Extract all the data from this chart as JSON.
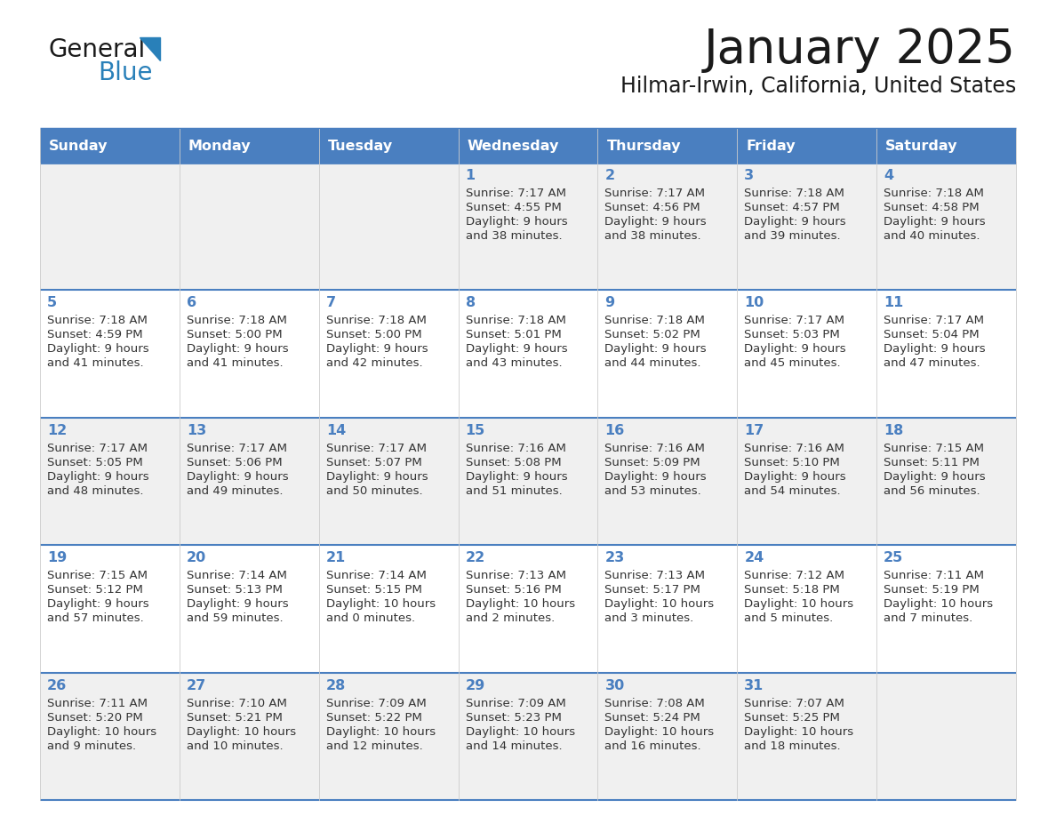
{
  "title": "January 2025",
  "subtitle": "Hilmar-Irwin, California, United States",
  "header_bg": "#4a7fc0",
  "header_text_color": "#ffffff",
  "row_bg_odd": "#f0f0f0",
  "row_bg_even": "#ffffff",
  "day_number_color": "#4a7fc0",
  "cell_text_color": "#333333",
  "border_color": "#4a7fc0",
  "logo_general_color": "#1a1a1a",
  "logo_blue_color": "#2980b9",
  "logo_triangle_color": "#2980b9",
  "days_of_week": [
    "Sunday",
    "Monday",
    "Tuesday",
    "Wednesday",
    "Thursday",
    "Friday",
    "Saturday"
  ],
  "weeks": [
    [
      {
        "day": "",
        "sunrise": "",
        "sunset": "",
        "daylight": ""
      },
      {
        "day": "",
        "sunrise": "",
        "sunset": "",
        "daylight": ""
      },
      {
        "day": "",
        "sunrise": "",
        "sunset": "",
        "daylight": ""
      },
      {
        "day": "1",
        "sunrise": "7:17 AM",
        "sunset": "4:55 PM",
        "daylight": "9 hours\nand 38 minutes."
      },
      {
        "day": "2",
        "sunrise": "7:17 AM",
        "sunset": "4:56 PM",
        "daylight": "9 hours\nand 38 minutes."
      },
      {
        "day": "3",
        "sunrise": "7:18 AM",
        "sunset": "4:57 PM",
        "daylight": "9 hours\nand 39 minutes."
      },
      {
        "day": "4",
        "sunrise": "7:18 AM",
        "sunset": "4:58 PM",
        "daylight": "9 hours\nand 40 minutes."
      }
    ],
    [
      {
        "day": "5",
        "sunrise": "7:18 AM",
        "sunset": "4:59 PM",
        "daylight": "9 hours\nand 41 minutes."
      },
      {
        "day": "6",
        "sunrise": "7:18 AM",
        "sunset": "5:00 PM",
        "daylight": "9 hours\nand 41 minutes."
      },
      {
        "day": "7",
        "sunrise": "7:18 AM",
        "sunset": "5:00 PM",
        "daylight": "9 hours\nand 42 minutes."
      },
      {
        "day": "8",
        "sunrise": "7:18 AM",
        "sunset": "5:01 PM",
        "daylight": "9 hours\nand 43 minutes."
      },
      {
        "day": "9",
        "sunrise": "7:18 AM",
        "sunset": "5:02 PM",
        "daylight": "9 hours\nand 44 minutes."
      },
      {
        "day": "10",
        "sunrise": "7:17 AM",
        "sunset": "5:03 PM",
        "daylight": "9 hours\nand 45 minutes."
      },
      {
        "day": "11",
        "sunrise": "7:17 AM",
        "sunset": "5:04 PM",
        "daylight": "9 hours\nand 47 minutes."
      }
    ],
    [
      {
        "day": "12",
        "sunrise": "7:17 AM",
        "sunset": "5:05 PM",
        "daylight": "9 hours\nand 48 minutes."
      },
      {
        "day": "13",
        "sunrise": "7:17 AM",
        "sunset": "5:06 PM",
        "daylight": "9 hours\nand 49 minutes."
      },
      {
        "day": "14",
        "sunrise": "7:17 AM",
        "sunset": "5:07 PM",
        "daylight": "9 hours\nand 50 minutes."
      },
      {
        "day": "15",
        "sunrise": "7:16 AM",
        "sunset": "5:08 PM",
        "daylight": "9 hours\nand 51 minutes."
      },
      {
        "day": "16",
        "sunrise": "7:16 AM",
        "sunset": "5:09 PM",
        "daylight": "9 hours\nand 53 minutes."
      },
      {
        "day": "17",
        "sunrise": "7:16 AM",
        "sunset": "5:10 PM",
        "daylight": "9 hours\nand 54 minutes."
      },
      {
        "day": "18",
        "sunrise": "7:15 AM",
        "sunset": "5:11 PM",
        "daylight": "9 hours\nand 56 minutes."
      }
    ],
    [
      {
        "day": "19",
        "sunrise": "7:15 AM",
        "sunset": "5:12 PM",
        "daylight": "9 hours\nand 57 minutes."
      },
      {
        "day": "20",
        "sunrise": "7:14 AM",
        "sunset": "5:13 PM",
        "daylight": "9 hours\nand 59 minutes."
      },
      {
        "day": "21",
        "sunrise": "7:14 AM",
        "sunset": "5:15 PM",
        "daylight": "10 hours\nand 0 minutes."
      },
      {
        "day": "22",
        "sunrise": "7:13 AM",
        "sunset": "5:16 PM",
        "daylight": "10 hours\nand 2 minutes."
      },
      {
        "day": "23",
        "sunrise": "7:13 AM",
        "sunset": "5:17 PM",
        "daylight": "10 hours\nand 3 minutes."
      },
      {
        "day": "24",
        "sunrise": "7:12 AM",
        "sunset": "5:18 PM",
        "daylight": "10 hours\nand 5 minutes."
      },
      {
        "day": "25",
        "sunrise": "7:11 AM",
        "sunset": "5:19 PM",
        "daylight": "10 hours\nand 7 minutes."
      }
    ],
    [
      {
        "day": "26",
        "sunrise": "7:11 AM",
        "sunset": "5:20 PM",
        "daylight": "10 hours\nand 9 minutes."
      },
      {
        "day": "27",
        "sunrise": "7:10 AM",
        "sunset": "5:21 PM",
        "daylight": "10 hours\nand 10 minutes."
      },
      {
        "day": "28",
        "sunrise": "7:09 AM",
        "sunset": "5:22 PM",
        "daylight": "10 hours\nand 12 minutes."
      },
      {
        "day": "29",
        "sunrise": "7:09 AM",
        "sunset": "5:23 PM",
        "daylight": "10 hours\nand 14 minutes."
      },
      {
        "day": "30",
        "sunrise": "7:08 AM",
        "sunset": "5:24 PM",
        "daylight": "10 hours\nand 16 minutes."
      },
      {
        "day": "31",
        "sunrise": "7:07 AM",
        "sunset": "5:25 PM",
        "daylight": "10 hours\nand 18 minutes."
      },
      {
        "day": "",
        "sunrise": "",
        "sunset": "",
        "daylight": ""
      }
    ]
  ]
}
